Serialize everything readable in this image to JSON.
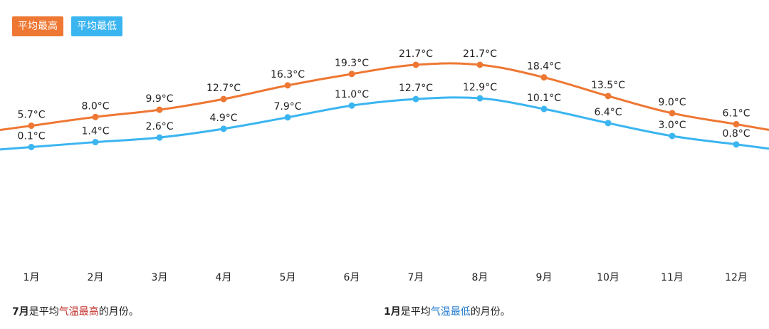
{
  "legend": {
    "high_label": "平均最高",
    "low_label": "平均最低",
    "high_color": "#ee7733",
    "low_color": "#3bb5f0"
  },
  "chart_data": {
    "type": "line",
    "categories": [
      "1月",
      "2月",
      "3月",
      "4月",
      "5月",
      "6月",
      "7月",
      "8月",
      "9月",
      "10月",
      "11月",
      "12月"
    ],
    "series": [
      {
        "name": "平均最高",
        "values": [
          5.7,
          8.0,
          9.9,
          12.7,
          16.3,
          19.3,
          21.7,
          21.7,
          18.4,
          13.5,
          9.0,
          6.1
        ],
        "color": "#ee7733"
      },
      {
        "name": "平均最低",
        "values": [
          0.1,
          1.4,
          2.6,
          4.9,
          7.9,
          11.0,
          12.7,
          12.9,
          10.1,
          6.4,
          3.0,
          0.8
        ],
        "color": "#3bb5f0"
      }
    ],
    "unit": "°C",
    "grid": false,
    "legend_position": "top-left"
  },
  "footer": {
    "left": {
      "month": "7月",
      "pre": "是平均",
      "mid": "气温",
      "high": "最高",
      "post": "的月份。"
    },
    "right": {
      "month": "1月",
      "pre": "是平均",
      "mid": "气温",
      "low": "最低",
      "post": "的月份。"
    }
  }
}
